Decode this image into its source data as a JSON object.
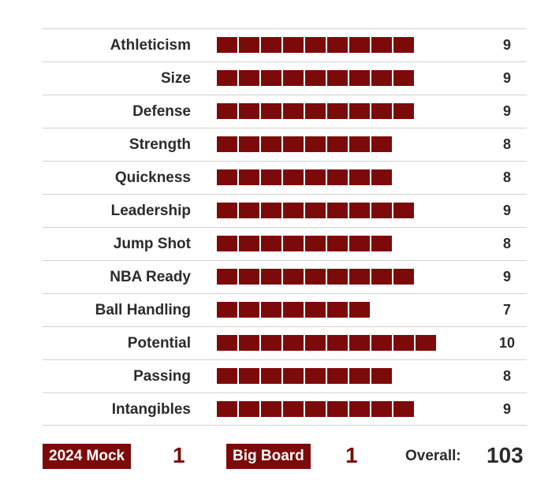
{
  "ratings": [
    {
      "label": "Athleticism",
      "value": "9"
    },
    {
      "label": "Size",
      "value": "9"
    },
    {
      "label": "Defense",
      "value": "9"
    },
    {
      "label": "Strength",
      "value": "8"
    },
    {
      "label": "Quickness",
      "value": "8"
    },
    {
      "label": "Leadership",
      "value": "9"
    },
    {
      "label": "Jump Shot",
      "value": "8"
    },
    {
      "label": "NBA Ready",
      "value": "9"
    },
    {
      "label": "Ball Handling",
      "value": "7"
    },
    {
      "label": "Potential",
      "value": "10"
    },
    {
      "label": "Passing",
      "value": "8"
    },
    {
      "label": "Intangibles",
      "value": "9"
    }
  ],
  "footer": {
    "mock_label": "2024 Mock",
    "mock_value": "1",
    "big_board_label": "Big Board",
    "big_board_value": "1",
    "overall_label": "Overall:",
    "overall_value": "103"
  },
  "colors": {
    "accent": "#7d0a0a",
    "text": "#2b2b2b",
    "divider": "#d2d2d2"
  }
}
